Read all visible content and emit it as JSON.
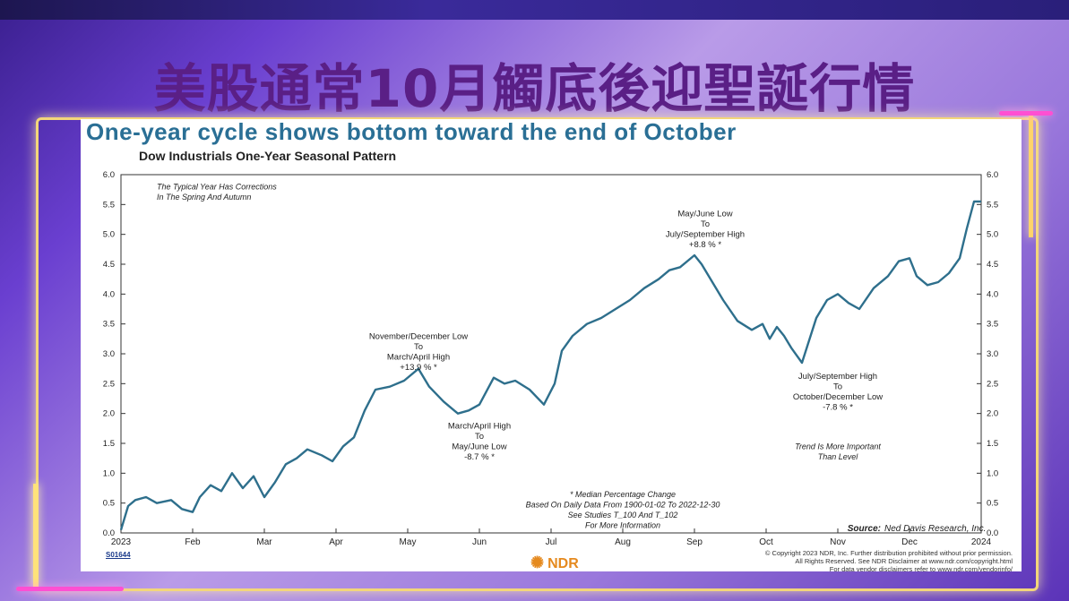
{
  "headline": "美股通常10月觸底後迎聖誕行情",
  "chart_data": {
    "type": "line",
    "title": "One-year cycle shows bottom toward the end of October",
    "subtitle": "Dow Industrials One-Year Seasonal Pattern",
    "x_tick_labels": [
      "2023",
      "Feb",
      "Mar",
      "Apr",
      "May",
      "Jun",
      "Jul",
      "Aug",
      "Sep",
      "Oct",
      "Nov",
      "Dec",
      "2024"
    ],
    "ylim": [
      0,
      6
    ],
    "y_ticks": [
      "0.0",
      "0.5",
      "1.0",
      "1.5",
      "2.0",
      "2.5",
      "3.0",
      "3.5",
      "4.0",
      "4.5",
      "5.0",
      "5.5",
      "6.0"
    ],
    "grid": false,
    "line_color": "#2e6f8c",
    "series": [
      {
        "x_month": [
          0,
          0.1,
          0.2,
          0.35,
          0.5,
          0.7,
          0.85,
          1.0,
          1.1,
          1.25,
          1.4,
          1.55,
          1.7,
          1.85,
          2.0,
          2.15,
          2.3,
          2.45,
          2.6,
          2.8,
          2.95,
          3.1,
          3.25,
          3.4,
          3.55,
          3.75,
          3.95,
          4.15,
          4.3,
          4.5,
          4.7,
          4.85,
          5.0,
          5.2,
          5.35,
          5.5,
          5.7,
          5.9,
          6.05,
          6.15,
          6.3,
          6.5,
          6.7,
          6.9,
          7.1,
          7.3,
          7.5,
          7.65,
          7.8,
          8.0,
          8.1,
          8.25,
          8.4,
          8.6,
          8.8,
          8.95,
          9.05,
          9.15,
          9.25,
          9.35,
          9.5,
          9.7,
          9.85,
          10.0,
          10.15,
          10.3,
          10.5,
          10.7,
          10.85,
          11.0,
          11.1,
          11.25,
          11.4,
          11.55,
          11.7,
          11.8,
          11.9,
          12.0
        ],
        "values": [
          0.05,
          0.45,
          0.55,
          0.6,
          0.5,
          0.55,
          0.4,
          0.35,
          0.6,
          0.8,
          0.7,
          1.0,
          0.75,
          0.95,
          0.6,
          0.85,
          1.15,
          1.25,
          1.4,
          1.3,
          1.2,
          1.45,
          1.6,
          2.05,
          2.4,
          2.45,
          2.55,
          2.75,
          2.45,
          2.2,
          2.0,
          2.05,
          2.15,
          2.6,
          2.5,
          2.55,
          2.4,
          2.15,
          2.5,
          3.05,
          3.3,
          3.5,
          3.6,
          3.75,
          3.9,
          4.1,
          4.25,
          4.4,
          4.45,
          4.65,
          4.5,
          4.2,
          3.9,
          3.55,
          3.4,
          3.5,
          3.25,
          3.45,
          3.3,
          3.1,
          2.85,
          3.6,
          3.9,
          4.0,
          3.85,
          3.75,
          4.1,
          4.3,
          4.55,
          4.6,
          4.3,
          4.15,
          4.2,
          4.35,
          4.6,
          5.1,
          5.55,
          5.55
        ]
      }
    ],
    "annotations": [
      {
        "id": "typical",
        "lines": [
          "The Typical Year Has Corrections",
          "In The Spring And Autumn"
        ]
      },
      {
        "id": "nov_dec",
        "lines": [
          "November/December Low",
          "To",
          "March/April High",
          "+13.9 % *"
        ]
      },
      {
        "id": "mar_apr",
        "lines": [
          "March/April High",
          "To",
          "May/June Low",
          "-8.7 % *"
        ]
      },
      {
        "id": "may_jun",
        "lines": [
          "May/June Low",
          "To",
          "July/September High",
          "+8.8 % *"
        ]
      },
      {
        "id": "jul_sep",
        "lines": [
          "July/September High",
          "To",
          "October/December Low",
          "-7.8 % *"
        ]
      },
      {
        "id": "trend",
        "lines": [
          "Trend Is More Important",
          "Than Level"
        ]
      },
      {
        "id": "median",
        "lines": [
          "* Median Percentage Change",
          "Based On Daily Data From 1900-01-02 To 2022-12-30",
          "See Studies  T_100 And T_102",
          "For More Information"
        ]
      }
    ],
    "source_label": "Source:",
    "source_text": "Ned Davis Research, Inc."
  },
  "footer": {
    "code": "S01644",
    "logo_text": "NDR",
    "copyright_lines": [
      "© Copyright 2023 NDR, Inc. Further distribution prohibited without prior permission.",
      "All Rights Reserved. See NDR Disclaimer at www.ndr.com/copyright.html",
      "For data vendor disclaimers refer to www.ndr.com/vendorinfo/"
    ]
  }
}
